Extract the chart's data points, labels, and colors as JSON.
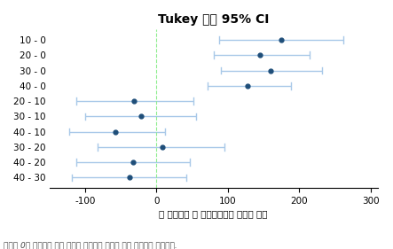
{
  "title": "Tukey 동시 95% CI",
  "xlabel": "각 경년수준 별 평균탄화길이 평균의 차이",
  "footnote": "구간에 0이 포함되어 있지 않으면 해당하는 평균이 서로 유의하게 다릅니다.",
  "xlim": [
    -150,
    310
  ],
  "xticks": [
    -100,
    0,
    100,
    200,
    300
  ],
  "categories": [
    "10 - 0",
    "20 - 0",
    "30 - 0",
    "40 - 0",
    "20 - 10",
    "30 - 10",
    "40 - 10",
    "30 - 20",
    "40 - 20",
    "40 - 30"
  ],
  "centers": [
    175,
    145,
    160,
    128,
    -32,
    -22,
    -58,
    8,
    -33,
    -38
  ],
  "lower": [
    88,
    80,
    90,
    72,
    -112,
    -100,
    -122,
    -82,
    -112,
    -118
  ],
  "upper": [
    262,
    215,
    232,
    188,
    52,
    55,
    12,
    95,
    47,
    42
  ],
  "dot_color": "#1f4e79",
  "line_color": "#a8c8e8",
  "vline_color": "#90ee90",
  "bg_color": "#ffffff",
  "title_fontsize": 10,
  "label_fontsize": 7.5,
  "footnote_fontsize": 6.5,
  "tick_fontsize": 7.5,
  "ytick_fontsize": 7.5
}
